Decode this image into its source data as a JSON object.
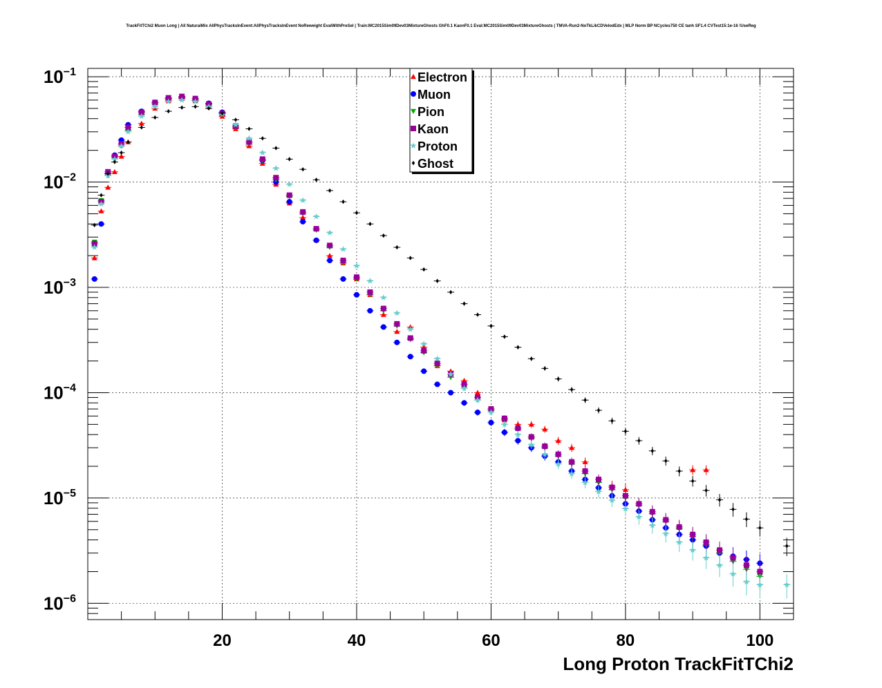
{
  "title": "TrackFitTChi2 Muon Long | All NaturalMix AllPhysTracksInEvent:AllPhysTracksInEvent NoReweight EvalWithPreSel | Train:MC2015Sim09Dev03MixtureGhosts GhF0.1 KaonF0.1 Eval:MC2015Sim09Dev03MixtureGhosts | TMVA-Run2-NoTkLikCDVelodEdx | MLP Norm BP NCycles750 CE tanh SF1.4 CVTest15:1e-16 !UseReg",
  "chart_data": {
    "type": "scatter",
    "xlabel": "Long Proton TrackFitTChi2",
    "ylabel": "",
    "xlim": [
      0,
      105
    ],
    "ylim": [
      7e-07,
      0.12
    ],
    "y_scale": "log",
    "grid": true,
    "x_ticks": [
      {
        "value": 20,
        "label": "20"
      },
      {
        "value": 40,
        "label": "40"
      },
      {
        "value": 60,
        "label": "60"
      },
      {
        "value": 80,
        "label": "80"
      },
      {
        "value": 100,
        "label": "100"
      }
    ],
    "y_ticks": [
      {
        "value": 0.1,
        "base": "10",
        "exp": "−1"
      },
      {
        "value": 0.01,
        "base": "10",
        "exp": "−2"
      },
      {
        "value": 0.001,
        "base": "10",
        "exp": "−3"
      },
      {
        "value": 0.0001,
        "base": "10",
        "exp": "−4"
      },
      {
        "value": 1e-05,
        "base": "10",
        "exp": "−5"
      },
      {
        "value": 1e-06,
        "base": "10",
        "exp": "−6"
      }
    ],
    "legend_position": "top-center",
    "series": [
      {
        "name": "Electron",
        "color": "#ff0000",
        "marker": "triangle-up",
        "x": [
          1,
          2,
          3,
          4,
          5,
          6,
          8,
          10,
          12,
          14,
          16,
          18,
          20,
          22,
          24,
          26,
          28,
          30,
          32,
          34,
          36,
          38,
          40,
          42,
          44,
          46,
          48,
          50,
          52,
          54,
          56,
          58,
          60,
          62,
          64,
          66,
          68,
          70,
          72,
          74,
          76,
          78,
          80,
          90,
          92
        ],
        "y": [
          0.0019,
          0.0053,
          0.0089,
          0.0125,
          0.0175,
          0.024,
          0.036,
          0.05,
          0.059,
          0.062,
          0.059,
          0.052,
          0.042,
          0.032,
          0.022,
          0.015,
          0.0095,
          0.0063,
          0.0046,
          0.0028,
          0.002,
          0.0017,
          0.0012,
          0.00085,
          0.00055,
          0.00038,
          0.00042,
          0.00027,
          0.00018,
          0.00016,
          0.00013,
          0.0001,
          7e-05,
          5.5e-05,
          5e-05,
          5e-05,
          4.5e-05,
          3.5e-05,
          3e-05,
          2.2e-05,
          1.5e-05,
          1.3e-05,
          1.2e-05,
          1.85e-05,
          1.85e-05
        ]
      },
      {
        "name": "Muon",
        "color": "#0000ff",
        "marker": "circle",
        "x": [
          1,
          2,
          3,
          4,
          5,
          6,
          8,
          10,
          12,
          14,
          16,
          18,
          20,
          22,
          24,
          26,
          28,
          30,
          32,
          34,
          36,
          38,
          40,
          42,
          44,
          46,
          48,
          50,
          52,
          54,
          56,
          58,
          60,
          62,
          64,
          66,
          68,
          70,
          72,
          74,
          76,
          78,
          80,
          82,
          84,
          86,
          88,
          90,
          92,
          94,
          96,
          98,
          100
        ],
        "y": [
          0.0012,
          0.004,
          0.012,
          0.018,
          0.025,
          0.035,
          0.047,
          0.057,
          0.062,
          0.064,
          0.062,
          0.056,
          0.046,
          0.034,
          0.024,
          0.016,
          0.01,
          0.0065,
          0.0042,
          0.0028,
          0.0018,
          0.0012,
          0.00085,
          0.0006,
          0.00042,
          0.0003,
          0.00022,
          0.00016,
          0.00012,
          0.0001,
          8e-05,
          6.5e-05,
          5.2e-05,
          4.2e-05,
          3.5e-05,
          3e-05,
          2.5e-05,
          2.2e-05,
          1.8e-05,
          1.5e-05,
          1.25e-05,
          1.05e-05,
          8.8e-06,
          7.5e-06,
          6.2e-06,
          5.2e-06,
          4.5e-06,
          4e-06,
          3.5e-06,
          3e-06,
          2.8e-06,
          2.6e-06,
          2.4e-06
        ]
      },
      {
        "name": "Pion",
        "color": "#00aa00",
        "marker": "triangle-down",
        "x": [
          1,
          2,
          3,
          4,
          5,
          6,
          8,
          10,
          12,
          14,
          16,
          18,
          20,
          22,
          24,
          26,
          28,
          30,
          32,
          34,
          36,
          38,
          40,
          42,
          44,
          46,
          48,
          50,
          52,
          54,
          56,
          58,
          60,
          62,
          64,
          66,
          68,
          70,
          72,
          74,
          76,
          78,
          80,
          82,
          84,
          86,
          88,
          90,
          92,
          94,
          96,
          98,
          100
        ],
        "y": [
          0.0027,
          0.0067,
          0.0115,
          0.017,
          0.022,
          0.031,
          0.044,
          0.055,
          0.061,
          0.063,
          0.06,
          0.054,
          0.044,
          0.033,
          0.023,
          0.016,
          0.0105,
          0.0073,
          0.005,
          0.0035,
          0.0024,
          0.0017,
          0.0012,
          0.00085,
          0.0006,
          0.00043,
          0.00032,
          0.00024,
          0.00018,
          0.00014,
          0.00011,
          8.5e-05,
          6.8e-05,
          5.5e-05,
          4.5e-05,
          3.7e-05,
          3e-05,
          2.5e-05,
          2.1e-05,
          1.7e-05,
          1.4e-05,
          1.2e-05,
          1e-05,
          8.5e-06,
          7.1e-06,
          6e-06,
          5.1e-06,
          4.3e-06,
          3.6e-06,
          3e-06,
          2.5e-06,
          2.1e-06,
          1.8e-06
        ]
      },
      {
        "name": "Kaon",
        "color": "#990099",
        "marker": "square",
        "x": [
          1,
          2,
          3,
          4,
          5,
          6,
          8,
          10,
          12,
          14,
          16,
          18,
          20,
          22,
          24,
          26,
          28,
          30,
          32,
          34,
          36,
          38,
          40,
          42,
          44,
          46,
          48,
          50,
          52,
          54,
          56,
          58,
          60,
          62,
          64,
          66,
          68,
          70,
          72,
          74,
          76,
          78,
          80,
          82,
          84,
          86,
          88,
          90,
          92,
          94,
          96,
          98,
          100
        ],
        "y": [
          0.0026,
          0.0065,
          0.0125,
          0.0175,
          0.023,
          0.033,
          0.046,
          0.057,
          0.063,
          0.065,
          0.062,
          0.055,
          0.045,
          0.034,
          0.024,
          0.0165,
          0.011,
          0.0075,
          0.0052,
          0.0036,
          0.0025,
          0.0018,
          0.00125,
          0.0009,
          0.00063,
          0.00045,
          0.00033,
          0.00025,
          0.00019,
          0.00015,
          0.00012,
          9e-05,
          7e-05,
          5.7e-05,
          4.6e-05,
          3.8e-05,
          3.1e-05,
          2.6e-05,
          2.2e-05,
          1.8e-05,
          1.5e-05,
          1.26e-05,
          1.05e-05,
          8.8e-06,
          7.4e-06,
          6.2e-06,
          5.3e-06,
          4.5e-06,
          3.8e-06,
          3.2e-06,
          2.7e-06,
          2.3e-06,
          2e-06
        ]
      },
      {
        "name": "Proton",
        "color": "#66cccc",
        "marker": "star",
        "x": [
          1,
          2,
          3,
          4,
          5,
          6,
          8,
          10,
          12,
          14,
          16,
          18,
          20,
          22,
          24,
          26,
          28,
          30,
          32,
          34,
          36,
          38,
          40,
          42,
          44,
          46,
          48,
          50,
          52,
          54,
          56,
          58,
          60,
          62,
          64,
          66,
          68,
          70,
          72,
          74,
          76,
          78,
          80,
          82,
          84,
          86,
          88,
          90,
          92,
          94,
          96,
          98,
          100,
          104
        ],
        "y": [
          0.0024,
          0.0062,
          0.0115,
          0.0165,
          0.022,
          0.03,
          0.042,
          0.052,
          0.058,
          0.06,
          0.058,
          0.052,
          0.044,
          0.035,
          0.026,
          0.019,
          0.0135,
          0.0095,
          0.0067,
          0.0047,
          0.0033,
          0.0023,
          0.0016,
          0.00115,
          0.0008,
          0.00057,
          0.0004,
          0.00029,
          0.00021,
          0.00015,
          0.00011,
          8.5e-05,
          6.5e-05,
          5e-05,
          4e-05,
          3.2e-05,
          2.6e-05,
          2.1e-05,
          1.7e-05,
          1.4e-05,
          1.15e-05,
          9.5e-06,
          7.9e-06,
          6.6e-06,
          5.5e-06,
          4.6e-06,
          3.8e-06,
          3.2e-06,
          2.7e-06,
          2.3e-06,
          1.9e-06,
          1.6e-06,
          1.5e-06,
          1.5e-06
        ]
      },
      {
        "name": "Ghost",
        "color": "#000000",
        "marker": "diamond",
        "x": [
          1,
          2,
          3,
          4,
          5,
          6,
          8,
          10,
          12,
          14,
          16,
          18,
          20,
          22,
          24,
          26,
          28,
          30,
          32,
          34,
          36,
          38,
          40,
          42,
          44,
          46,
          48,
          50,
          52,
          54,
          56,
          58,
          60,
          62,
          64,
          66,
          68,
          70,
          72,
          74,
          76,
          78,
          80,
          82,
          84,
          86,
          88,
          90,
          92,
          94,
          96,
          98,
          100,
          104
        ],
        "y": [
          0.0039,
          0.0075,
          0.012,
          0.0155,
          0.019,
          0.024,
          0.033,
          0.041,
          0.047,
          0.051,
          0.052,
          0.05,
          0.045,
          0.039,
          0.032,
          0.026,
          0.021,
          0.0165,
          0.0132,
          0.0105,
          0.0083,
          0.0065,
          0.0051,
          0.004,
          0.0031,
          0.0024,
          0.0019,
          0.00148,
          0.00115,
          0.0009,
          0.0007,
          0.00055,
          0.00043,
          0.00034,
          0.00027,
          0.00021,
          0.00017,
          0.000135,
          0.000107,
          8.5e-05,
          6.8e-05,
          5.4e-05,
          4.3e-05,
          3.5e-05,
          2.8e-05,
          2.25e-05,
          1.8e-05,
          1.45e-05,
          1.18e-05,
          9.6e-06,
          7.8e-06,
          6.3e-06,
          5.2e-06,
          3.5e-06
        ]
      }
    ]
  }
}
